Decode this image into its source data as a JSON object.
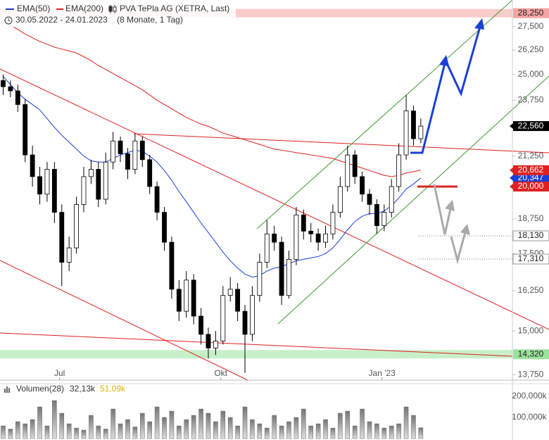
{
  "chart_data": {
    "type": "candlestick",
    "title": "PVA TePla AG (XETRA, Last)",
    "subtitle": "30.05.2022 - 24.01.2023",
    "period": "(8 Monate, 1 Tag)",
    "log_scale": true,
    "ylim": [
      13600,
      29000
    ],
    "yticks": [
      {
        "value": 27500,
        "label": "27,500"
      },
      {
        "value": 26250,
        "label": "26,250"
      },
      {
        "value": 25000,
        "label": "25,000"
      },
      {
        "value": 23750,
        "label": "23,750"
      },
      {
        "value": 21250,
        "label": "21,250"
      },
      {
        "value": 18750,
        "label": "18,750"
      },
      {
        "value": 17500,
        "label": "17,500"
      },
      {
        "value": 16250,
        "label": "16,250"
      },
      {
        "value": 15000,
        "label": "15,000"
      },
      {
        "value": 13750,
        "label": "13,750"
      }
    ],
    "xlim": [
      -0.43,
      69.5
    ],
    "xticks": [
      {
        "value": 7.7,
        "label": "Jul"
      },
      {
        "value": 29.7,
        "label": "Okt"
      },
      {
        "value": 51.7,
        "label": "Jan '23"
      }
    ],
    "open": [
      24700,
      24400,
      24200,
      23550,
      21300,
      20400,
      19700,
      20700,
      19000,
      17200,
      17700,
      19300,
      20400,
      20700,
      19500,
      21000,
      21900,
      21350,
      20700,
      21900,
      21100,
      20000,
      19000,
      17900,
      16300,
      15600,
      16600,
      15450,
      14900,
      14500,
      14700,
      16100,
      16300,
      15600,
      14900,
      16100,
      17200,
      18200,
      17900,
      16100,
      17300,
      18900,
      18300,
      18200,
      17900,
      18200,
      19000,
      20000,
      21300,
      20400,
      19700,
      19300,
      18500,
      19000,
      20000,
      21300,
      23250,
      22000
    ],
    "high": [
      25000,
      24700,
      24500,
      23800,
      21700,
      20800,
      21000,
      21000,
      19300,
      18100,
      19600,
      20800,
      21100,
      21000,
      21400,
      22300,
      22100,
      21600,
      22200,
      22100,
      21300,
      20200,
      19200,
      18100,
      16600,
      16900,
      16800,
      15700,
      15100,
      15000,
      16400,
      16700,
      16500,
      15800,
      16400,
      17500,
      18700,
      18500,
      18100,
      17600,
      19200,
      19100,
      18600,
      18400,
      18500,
      19300,
      20400,
      21700,
      21500,
      20600,
      19900,
      19500,
      19300,
      20300,
      21800,
      24000,
      23500,
      22900
    ],
    "low": [
      24000,
      23900,
      23200,
      21000,
      20000,
      19300,
      19400,
      18600,
      16400,
      16900,
      17500,
      19000,
      20100,
      19200,
      19300,
      20700,
      21000,
      20300,
      20500,
      20800,
      19700,
      18700,
      17600,
      16000,
      15300,
      15400,
      15200,
      14600,
      14200,
      14300,
      14600,
      15900,
      15300,
      13800,
      14700,
      15900,
      17000,
      17600,
      15800,
      16000,
      17100,
      18000,
      17900,
      17600,
      17700,
      18000,
      18800,
      19800,
      20100,
      19400,
      18900,
      18200,
      18300,
      18800,
      19800,
      21100,
      21700,
      21800
    ],
    "close": [
      24400,
      24200,
      23550,
      21300,
      20400,
      19700,
      20700,
      19000,
      17200,
      17700,
      19300,
      20400,
      20700,
      19500,
      21000,
      21900,
      21350,
      20700,
      21900,
      21100,
      20000,
      19000,
      17900,
      16300,
      15600,
      16600,
      15450,
      14900,
      14500,
      14700,
      16100,
      16300,
      15600,
      14900,
      16100,
      17200,
      18200,
      17900,
      16100,
      17300,
      18900,
      18300,
      18200,
      17900,
      18200,
      19000,
      20000,
      21300,
      20400,
      19700,
      19300,
      18500,
      19000,
      20000,
      21300,
      23250,
      22000,
      22560
    ],
    "series": [
      {
        "name": "EMA(50)",
        "color": "#1a3fd6",
        "values": [
          24900,
          24500,
          24100,
          23800,
          23550,
          23300,
          22900,
          22500,
          22150,
          21850,
          21550,
          21250,
          21050,
          21000,
          21000,
          21150,
          21300,
          21400,
          21500,
          21450,
          21250,
          21000,
          20650,
          20250,
          19800,
          19400,
          19000,
          18600,
          18250,
          17900,
          17550,
          17250,
          17000,
          16800,
          16700,
          16750,
          16900,
          17000,
          17050,
          17150,
          17250,
          17300,
          17350,
          17400,
          17500,
          17700,
          18000,
          18350,
          18650,
          18850,
          18950,
          18950,
          19050,
          19250,
          19550,
          19900,
          20100,
          20347
        ]
      },
      {
        "name": "EMA(200)",
        "color": "#e02020",
        "values": [
          27900,
          27600,
          27350,
          27100,
          26900,
          26700,
          26550,
          26400,
          26300,
          26200,
          26100,
          25900,
          25700,
          25450,
          25250,
          25050,
          24850,
          24650,
          24450,
          24250,
          24000,
          23750,
          23550,
          23350,
          23150,
          22950,
          22800,
          22650,
          22550,
          22400,
          22250,
          22150,
          22050,
          21950,
          21850,
          21750,
          21650,
          21550,
          21500,
          21450,
          21400,
          21350,
          21300,
          21250,
          21200,
          21150,
          21050,
          20950,
          20850,
          20750,
          20650,
          20550,
          20450,
          20400,
          20450,
          20550,
          20600,
          20662
        ]
      }
    ],
    "price_markers": [
      {
        "value": 20347,
        "label": "20,347",
        "color": "#1a3fd6",
        "style": "box"
      },
      {
        "value": 28250,
        "label": "28,250",
        "color": "#f5a3a3",
        "style": "band"
      },
      {
        "value": 22560,
        "label": "22,560",
        "color": "#000000",
        "style": "box"
      },
      {
        "value": 20662,
        "label": "20,662",
        "color": "#e02020",
        "style": "box"
      },
      {
        "value": 20000,
        "label": "20,000",
        "color": "#e02020",
        "style": "level"
      },
      {
        "value": 18130,
        "label": "18,130",
        "color": "#999999",
        "style": "dotted"
      },
      {
        "value": 17310,
        "label": "17,310",
        "color": "#999999",
        "style": "dotted"
      },
      {
        "value": 14320,
        "label": "14,320",
        "color": "#9be39b",
        "style": "band"
      }
    ],
    "volume": {
      "name": "Volumen(28)",
      "average_label": "32,13k",
      "last_label": "51,09k",
      "ylim": [
        0,
        260
      ],
      "yticks": [
        {
          "value": 100,
          "label": "100,000k"
        },
        {
          "value": 200,
          "label": "200,000k"
        }
      ],
      "values": [
        60,
        45,
        80,
        70,
        90,
        150,
        60,
        180,
        120,
        70,
        50,
        40,
        110,
        60,
        45,
        140,
        70,
        90,
        55,
        120,
        80,
        150,
        100,
        130,
        60,
        90,
        110,
        140,
        120,
        80,
        130,
        100,
        60,
        150,
        90,
        70,
        50,
        110,
        60,
        80,
        100,
        140,
        60,
        70,
        90,
        50,
        120,
        130,
        60,
        140,
        80,
        70,
        50,
        60,
        70,
        150,
        110,
        51.09
      ]
    }
  }
}
